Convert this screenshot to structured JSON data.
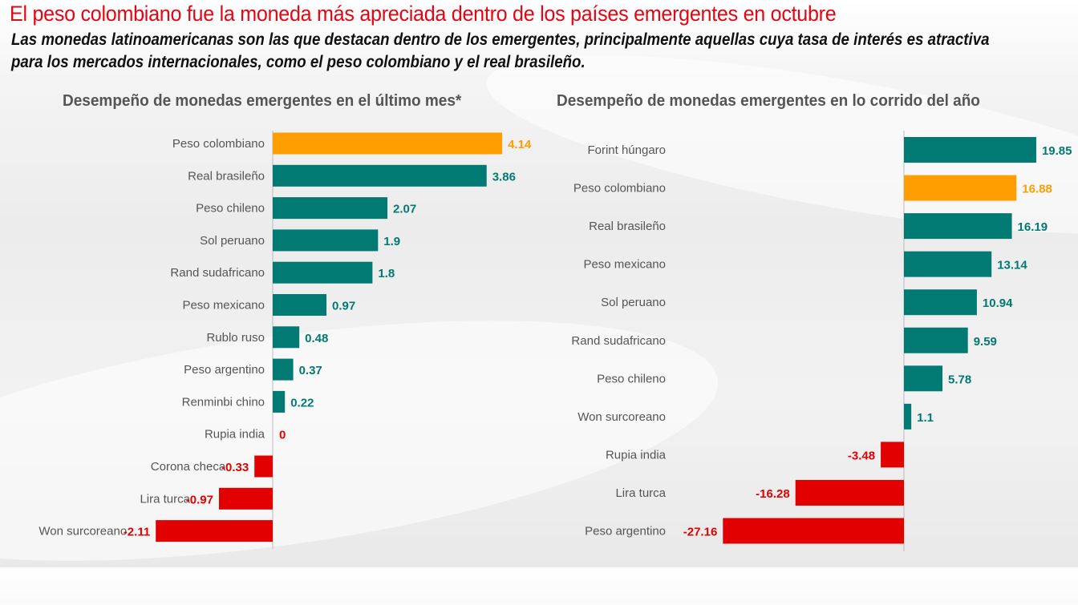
{
  "header": {
    "title": "El peso colombiano fue la moneda más apreciada dentro de los países emergentes en octubre",
    "subtitle": "Las monedas latinoamericanas son las que destacan dentro de los emergentes, principalmente aquellas cuya tasa de interés es atractiva para los mercados internacionales, como el peso colombiano y el real brasileño."
  },
  "colors": {
    "positive": "#007a72",
    "highlight": "#ff9e00",
    "negative": "#e30000",
    "title": "#e30613"
  },
  "chart_data": [
    {
      "type": "bar",
      "orientation": "horizontal",
      "title": "Desempeño de monedas emergentes en el último mes*",
      "categories": [
        "Peso colombiano",
        "Real brasileño",
        "Peso chileno",
        "Sol peruano",
        "Rand sudafricano",
        "Peso mexicano",
        "Rublo ruso",
        "Peso argentino",
        "Renminbi chino",
        "Rupia india",
        "Corona checa",
        "Lira turca",
        "Won surcoreano"
      ],
      "values": [
        4.14,
        3.86,
        2.07,
        1.9,
        1.8,
        0.97,
        0.48,
        0.37,
        0.22,
        0,
        -0.33,
        -0.97,
        -2.11
      ],
      "labels": [
        "4.14",
        "3.86",
        "2.07",
        "1.9",
        "1.8",
        "0.97",
        "0.48",
        "0.37",
        "0.22",
        "0",
        "-0.33",
        "-0.97",
        "-2.11"
      ],
      "highlight": "Peso colombiano",
      "xlim": [
        -2.11,
        4.14
      ],
      "grid": false
    },
    {
      "type": "bar",
      "orientation": "horizontal",
      "title": "Desempeño de monedas emergentes en lo corrido del año",
      "categories": [
        "Forint húngaro",
        "Peso colombiano",
        "Real brasileño",
        "Peso mexicano",
        "Sol peruano",
        "Rand sudafricano",
        "Peso chileno",
        "Won surcoreano",
        "Rupia india",
        "Lira turca",
        "Peso argentino"
      ],
      "values": [
        19.85,
        16.88,
        16.19,
        13.14,
        10.94,
        9.59,
        5.78,
        1.1,
        -3.48,
        -16.28,
        -27.16
      ],
      "labels": [
        "19.85",
        "16.88",
        "16.19",
        "13.14",
        "10.94",
        "9.59",
        "5.78",
        "1.1",
        "-3.48",
        "-16.28",
        "-27.16"
      ],
      "highlight": "Peso colombiano",
      "xlim": [
        -27.16,
        19.85
      ],
      "grid": false
    }
  ]
}
